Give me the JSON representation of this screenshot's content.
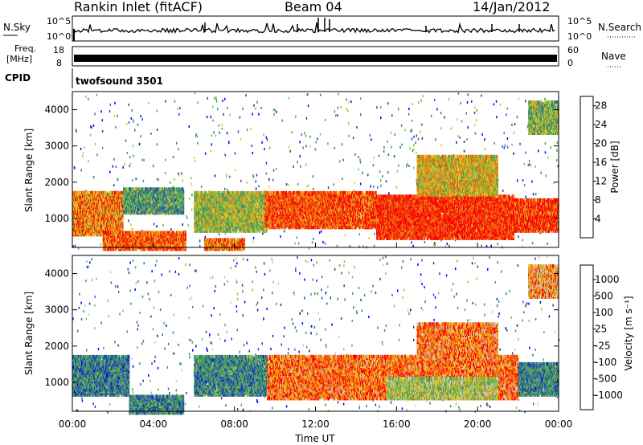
{
  "header": {
    "station": "Rankin Inlet (fitACF)",
    "beam": "Beam 04",
    "date": "14/Jan/2012"
  },
  "top_panels": {
    "nsky_label": "N.Sky",
    "nsearch_label": "N.Search",
    "nsky_ticks": [
      "10^5",
      "10^0"
    ],
    "nsearch_ticks": [
      "10^5",
      "10^0"
    ],
    "freq_label_line1": "Freq.",
    "freq_label_line2": "[MHz]",
    "freq_ticks": [
      "18",
      "8"
    ],
    "nave_label": "Nave",
    "nave_ticks": [
      "60",
      "0"
    ],
    "cpid_label": "CPID",
    "cpid_value": "twofsound 3501"
  },
  "colors": {
    "power_scale": [
      "#0000ff",
      "#1f3fb0",
      "#2f6f9f",
      "#3c8f6f",
      "#4fa84f",
      "#8fc83f",
      "#f0c020",
      "#f09010",
      "#f06010",
      "#e83010",
      "#ff0000"
    ],
    "velocity_scale": [
      "#0000ff",
      "#1f3fb0",
      "#2f6f9f",
      "#3c8f6f",
      "#4fa84f",
      "#8fc83f",
      "#c8c8c8",
      "#f0c020",
      "#f09010",
      "#f06010",
      "#ff0000"
    ],
    "ground_scatter": "#bebebe"
  },
  "chart_data": [
    {
      "type": "heatmap",
      "name": "power-panel",
      "ylabel": "Slant Range [km]",
      "y_ticks": [
        "1000",
        "2000",
        "3000",
        "4000"
      ],
      "ylim": [
        200,
        4500
      ],
      "xlim": [
        "00:00",
        "24:00"
      ],
      "colorbar": {
        "label": "Power [dB]",
        "ticks": [
          "4",
          "8",
          "12",
          "16",
          "20",
          "24",
          "28"
        ],
        "range": [
          0,
          30
        ]
      },
      "echo_regions": [
        {
          "t_start": 0.0,
          "t_end": 2.5,
          "r_start": 600,
          "r_end": 1800,
          "level": 0.72
        },
        {
          "t_start": 1.5,
          "t_end": 5.6,
          "r_start": 200,
          "r_end": 700,
          "level": 0.8
        },
        {
          "t_start": 2.5,
          "t_end": 5.5,
          "r_start": 1200,
          "r_end": 1900,
          "level": 0.35
        },
        {
          "t_start": 6.0,
          "t_end": 9.6,
          "r_start": 700,
          "r_end": 1800,
          "level": 0.5
        },
        {
          "t_start": 6.5,
          "t_end": 8.5,
          "r_start": 200,
          "r_end": 500,
          "level": 0.75
        },
        {
          "t_start": 9.5,
          "t_end": 15.0,
          "r_start": 800,
          "r_end": 1800,
          "level": 0.82
        },
        {
          "t_start": 15.0,
          "t_end": 21.8,
          "r_start": 500,
          "r_end": 1700,
          "level": 0.88
        },
        {
          "t_start": 17.0,
          "t_end": 21.0,
          "r_start": 1700,
          "r_end": 2800,
          "level": 0.6
        },
        {
          "t_start": 21.5,
          "t_end": 24.0,
          "r_start": 700,
          "r_end": 1600,
          "level": 0.85
        },
        {
          "t_start": 22.5,
          "t_end": 24.0,
          "r_start": 3400,
          "r_end": 4300,
          "level": 0.45
        }
      ]
    },
    {
      "type": "heatmap",
      "name": "velocity-panel",
      "ylabel": "Slant Range [km]",
      "xlabel": "Time UT",
      "y_ticks": [
        "1000",
        "2000",
        "3000",
        "4000"
      ],
      "x_ticks": [
        "00:00",
        "04:00",
        "08:00",
        "12:00",
        "16:00",
        "20:00",
        "00:00"
      ],
      "ylim": [
        200,
        4500
      ],
      "xlim": [
        "00:00",
        "24:00"
      ],
      "colorbar": {
        "label": "Velocity [m s⁻¹]",
        "ticks": [
          "1000",
          "500",
          "100",
          "25",
          "-25",
          "-100",
          "-500",
          "-1000"
        ],
        "range": [
          -1200,
          1200
        ]
      },
      "echo_regions": [
        {
          "t_start": 0.0,
          "t_end": 2.8,
          "r_start": 700,
          "r_end": 1800,
          "level": 0.28
        },
        {
          "t_start": 2.8,
          "t_end": 5.5,
          "r_start": 200,
          "r_end": 700,
          "level": 0.3
        },
        {
          "t_start": 6.0,
          "t_end": 9.6,
          "r_start": 700,
          "r_end": 1800,
          "level": 0.3
        },
        {
          "t_start": 9.6,
          "t_end": 22.0,
          "r_start": 600,
          "r_end": 1800,
          "level": 0.82
        },
        {
          "t_start": 15.5,
          "t_end": 21.0,
          "r_start": 600,
          "r_end": 1200,
          "level": 0.55
        },
        {
          "t_start": 17.0,
          "t_end": 21.0,
          "r_start": 1700,
          "r_end": 2700,
          "level": 0.8
        },
        {
          "t_start": 22.0,
          "t_end": 24.0,
          "r_start": 700,
          "r_end": 1600,
          "level": 0.3
        },
        {
          "t_start": 22.5,
          "t_end": 24.0,
          "r_start": 3400,
          "r_end": 4300,
          "level": 0.75
        }
      ]
    }
  ]
}
